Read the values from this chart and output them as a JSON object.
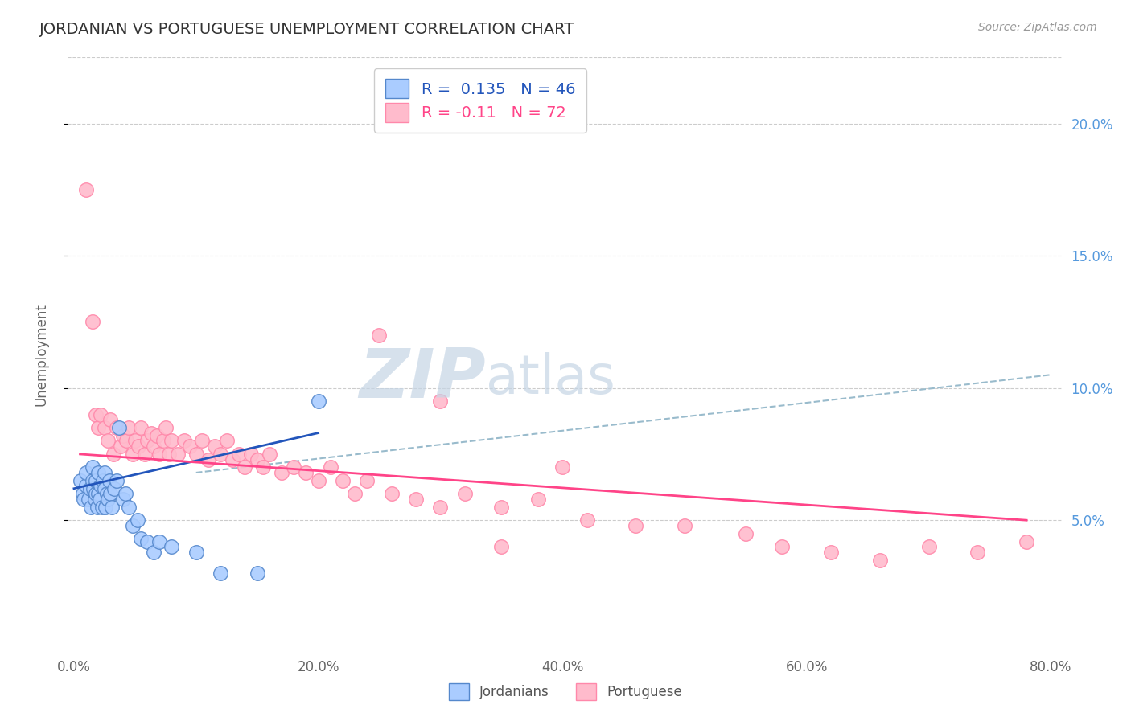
{
  "title": "JORDANIAN VS PORTUGUESE UNEMPLOYMENT CORRELATION CHART",
  "source_text": "Source: ZipAtlas.com",
  "ylabel": "Unemployment",
  "xlim": [
    -0.005,
    0.81
  ],
  "ylim": [
    0.0,
    0.225
  ],
  "xticks": [
    0.0,
    0.2,
    0.4,
    0.6,
    0.8
  ],
  "xticklabels": [
    "0.0%",
    "20.0%",
    "40.0%",
    "60.0%",
    "80.0%"
  ],
  "yticks_right": [
    0.05,
    0.1,
    0.15,
    0.2
  ],
  "yticklabels_right": [
    "5.0%",
    "10.0%",
    "15.0%",
    "20.0%"
  ],
  "jordanian_color": "#aaccff",
  "jordanian_edge_color": "#5588cc",
  "portuguese_color": "#ffbbcc",
  "portuguese_edge_color": "#ff88aa",
  "jordanian_R": 0.135,
  "jordanian_N": 46,
  "portuguese_R": -0.11,
  "portuguese_N": 72,
  "trend_blue": "#2255bb",
  "trend_pink": "#ff4488",
  "trend_dashed_color": "#99bbcc",
  "watermark_zip": "ZIP",
  "watermark_atlas": "atlas",
  "watermark_color": "#c5d5e5",
  "background_color": "#ffffff",
  "grid_color": "#cccccc",
  "jordanian_x": [
    0.005,
    0.007,
    0.008,
    0.01,
    0.01,
    0.012,
    0.013,
    0.014,
    0.015,
    0.015,
    0.016,
    0.017,
    0.018,
    0.018,
    0.019,
    0.02,
    0.02,
    0.021,
    0.022,
    0.023,
    0.024,
    0.025,
    0.025,
    0.026,
    0.027,
    0.028,
    0.029,
    0.03,
    0.031,
    0.033,
    0.035,
    0.037,
    0.04,
    0.042,
    0.045,
    0.048,
    0.052,
    0.055,
    0.06,
    0.065,
    0.07,
    0.08,
    0.1,
    0.12,
    0.15,
    0.2
  ],
  "jordanian_y": [
    0.065,
    0.06,
    0.058,
    0.063,
    0.068,
    0.058,
    0.062,
    0.055,
    0.065,
    0.07,
    0.062,
    0.058,
    0.06,
    0.065,
    0.055,
    0.06,
    0.068,
    0.058,
    0.063,
    0.055,
    0.065,
    0.062,
    0.068,
    0.055,
    0.06,
    0.058,
    0.065,
    0.06,
    0.055,
    0.062,
    0.065,
    0.085,
    0.058,
    0.06,
    0.055,
    0.048,
    0.05,
    0.043,
    0.042,
    0.038,
    0.042,
    0.04,
    0.038,
    0.03,
    0.03,
    0.095
  ],
  "portuguese_x": [
    0.01,
    0.015,
    0.018,
    0.02,
    0.022,
    0.025,
    0.028,
    0.03,
    0.032,
    0.035,
    0.038,
    0.04,
    0.043,
    0.045,
    0.048,
    0.05,
    0.053,
    0.055,
    0.058,
    0.06,
    0.063,
    0.065,
    0.068,
    0.07,
    0.073,
    0.075,
    0.078,
    0.08,
    0.085,
    0.09,
    0.095,
    0.1,
    0.105,
    0.11,
    0.115,
    0.12,
    0.125,
    0.13,
    0.135,
    0.14,
    0.145,
    0.15,
    0.155,
    0.16,
    0.17,
    0.18,
    0.19,
    0.2,
    0.21,
    0.22,
    0.23,
    0.24,
    0.26,
    0.28,
    0.3,
    0.32,
    0.35,
    0.38,
    0.42,
    0.46,
    0.5,
    0.55,
    0.58,
    0.62,
    0.66,
    0.7,
    0.74,
    0.78,
    0.25,
    0.3,
    0.35,
    0.4
  ],
  "portuguese_y": [
    0.175,
    0.125,
    0.09,
    0.085,
    0.09,
    0.085,
    0.08,
    0.088,
    0.075,
    0.085,
    0.078,
    0.082,
    0.08,
    0.085,
    0.075,
    0.08,
    0.078,
    0.085,
    0.075,
    0.08,
    0.083,
    0.078,
    0.082,
    0.075,
    0.08,
    0.085,
    0.075,
    0.08,
    0.075,
    0.08,
    0.078,
    0.075,
    0.08,
    0.073,
    0.078,
    0.075,
    0.08,
    0.073,
    0.075,
    0.07,
    0.075,
    0.073,
    0.07,
    0.075,
    0.068,
    0.07,
    0.068,
    0.065,
    0.07,
    0.065,
    0.06,
    0.065,
    0.06,
    0.058,
    0.055,
    0.06,
    0.055,
    0.058,
    0.05,
    0.048,
    0.048,
    0.045,
    0.04,
    0.038,
    0.035,
    0.04,
    0.038,
    0.042,
    0.12,
    0.095,
    0.04,
    0.07
  ]
}
